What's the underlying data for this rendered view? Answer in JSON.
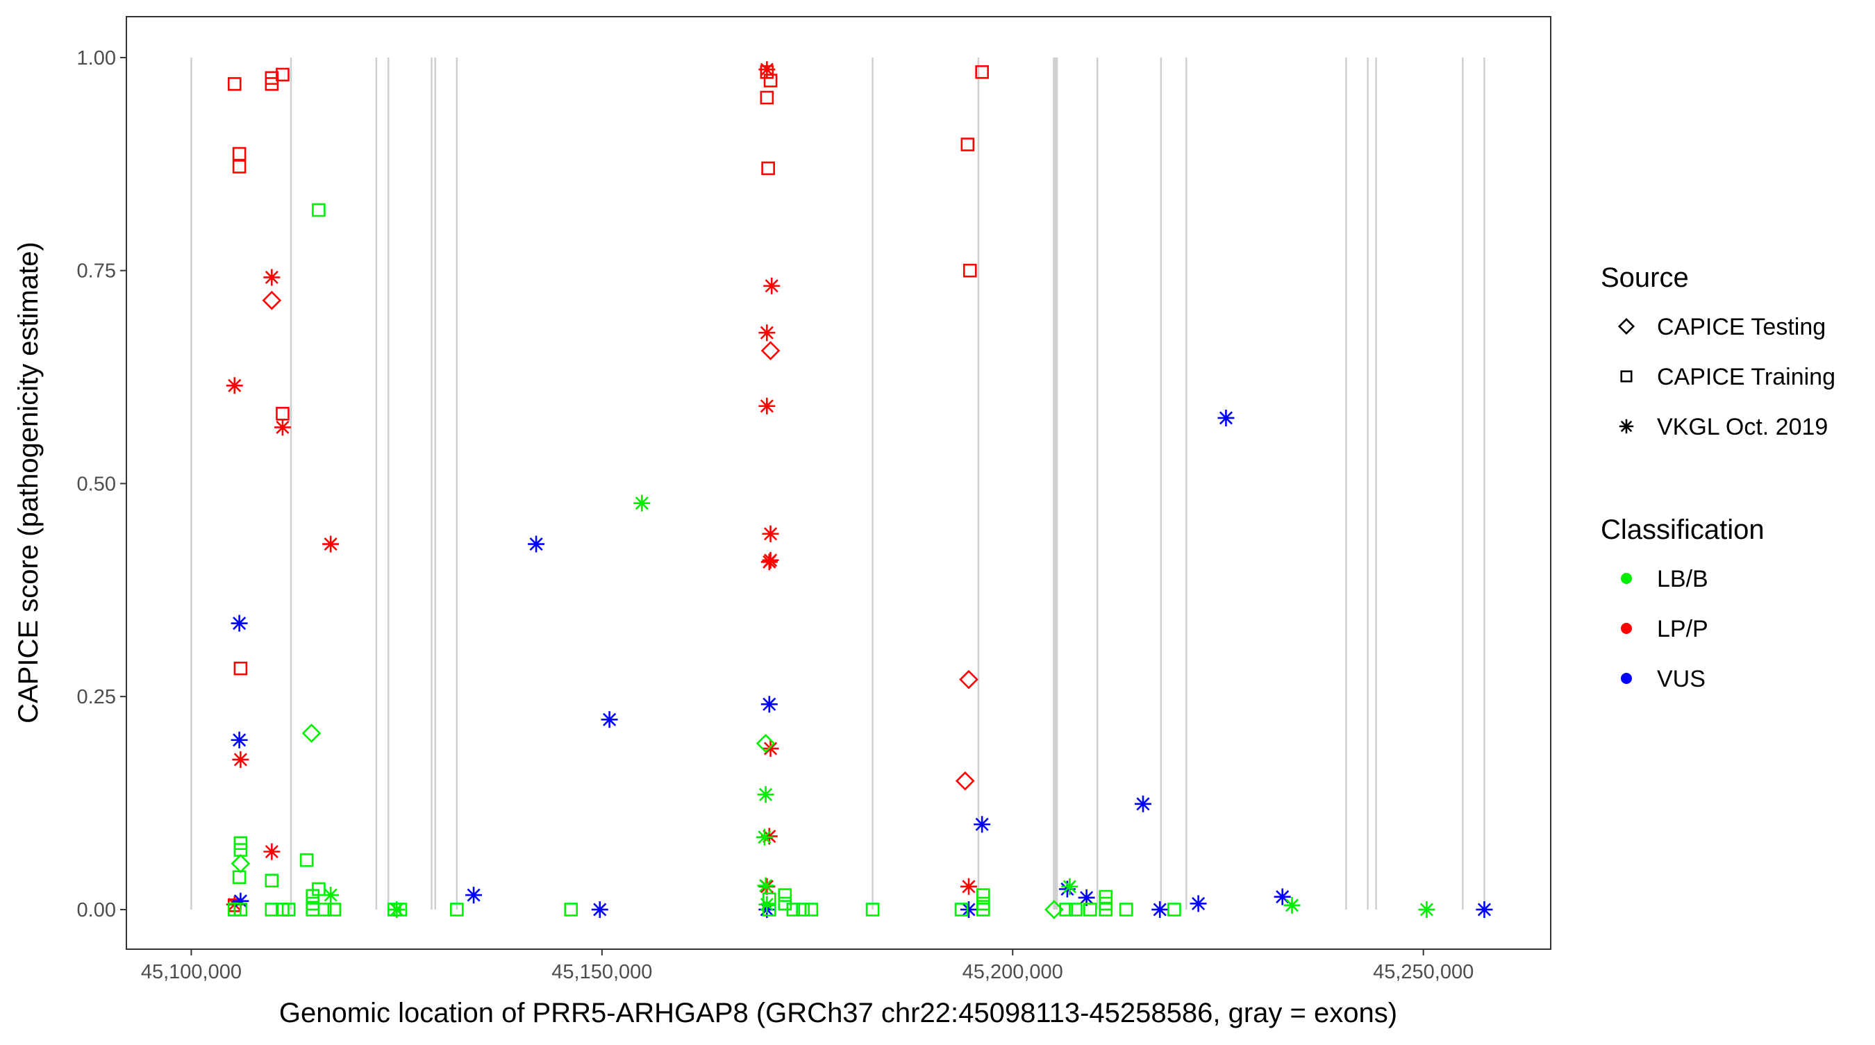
{
  "chart_data": {
    "type": "scatter",
    "xlabel": "Genomic location of PRR5-ARHGAP8 (GRCh37 chr22:45098113-45258586, gray = exons)",
    "ylabel": "CAPICE score (pathogenicity estimate)",
    "xlim": [
      45092100,
      45265500
    ],
    "ylim": [
      -0.0465,
      1.048
    ],
    "x_ticks": [
      45100000,
      45150000,
      45200000,
      45250000
    ],
    "x_tick_labels": [
      "45,100,000",
      "45,150,000",
      "45,200,000",
      "45,250,000"
    ],
    "y_ticks": [
      0,
      0.25,
      0.5,
      0.75,
      1.0
    ],
    "y_tick_labels": [
      "0.00",
      "0.25",
      "0.50",
      "0.75",
      "1.00"
    ],
    "grid": false,
    "exons": [
      45100000,
      45112143,
      45122530,
      45123990,
      45129260,
      45129700,
      45132330,
      45182950,
      45195830,
      45205000,
      45205190,
      45205400,
      45210310,
      45218060,
      45221140,
      45240590,
      45243230,
      45244250,
      45254790,
      45257420
    ],
    "legend": {
      "placement": "right",
      "source_title": "Source",
      "sources": [
        {
          "label": "CAPICE Testing",
          "shape": "diamond"
        },
        {
          "label": "CAPICE Training",
          "shape": "square"
        },
        {
          "label": "VKGL Oct. 2019",
          "shape": "asterisk"
        }
      ],
      "class_title": "Classification",
      "classes": [
        {
          "label": "LB/B",
          "color": "#00ee00"
        },
        {
          "label": "LP/P",
          "color": "#ff0000"
        },
        {
          "label": "VUS",
          "color": "#0000ff"
        }
      ]
    },
    "point_fields": [
      "position",
      "score",
      "source_index",
      "class_index"
    ],
    "points": [
      [
        45105270,
        0.969,
        1,
        1
      ],
      [
        45109800,
        0.969,
        1,
        1
      ],
      [
        45109800,
        0.976,
        1,
        1
      ],
      [
        45111120,
        0.98,
        1,
        1
      ],
      [
        45105850,
        0.887,
        1,
        1
      ],
      [
        45105850,
        0.872,
        1,
        1
      ],
      [
        45111120,
        0.582,
        1,
        1
      ],
      [
        45106000,
        0.283,
        1,
        1
      ],
      [
        45105270,
        0.005,
        1,
        1
      ],
      [
        45109800,
        0.715,
        0,
        1
      ],
      [
        45109800,
        0.742,
        2,
        1
      ],
      [
        45105270,
        0.615,
        2,
        1
      ],
      [
        45111120,
        0.566,
        2,
        1
      ],
      [
        45116970,
        0.429,
        2,
        1
      ],
      [
        45106000,
        0.176,
        2,
        1
      ],
      [
        45109800,
        0.068,
        2,
        1
      ],
      [
        45105270,
        0.006,
        2,
        1
      ],
      [
        45105850,
        0.336,
        2,
        2
      ],
      [
        45105850,
        0.199,
        2,
        2
      ],
      [
        45106000,
        0.01,
        2,
        2
      ],
      [
        45141990,
        0.429,
        2,
        2
      ],
      [
        45150910,
        0.223,
        2,
        2
      ],
      [
        45134380,
        0.017,
        2,
        2
      ],
      [
        45149740,
        0.0,
        2,
        2
      ],
      [
        45115510,
        0.821,
        1,
        0
      ],
      [
        45106000,
        0.078,
        1,
        0
      ],
      [
        45106000,
        0.07,
        1,
        0
      ],
      [
        45105850,
        0.038,
        1,
        0
      ],
      [
        45109800,
        0.034,
        1,
        0
      ],
      [
        45114050,
        0.058,
        1,
        0
      ],
      [
        45115510,
        0.024,
        1,
        0
      ],
      [
        45114780,
        0.016,
        1,
        0
      ],
      [
        45114780,
        0.007,
        1,
        0
      ],
      [
        45105270,
        0,
        1,
        0
      ],
      [
        45106000,
        0,
        1,
        0
      ],
      [
        45109800,
        0,
        1,
        0
      ],
      [
        45111120,
        0,
        1,
        0
      ],
      [
        45111850,
        0,
        1,
        0
      ],
      [
        45114780,
        0,
        1,
        0
      ],
      [
        45116240,
        0,
        1,
        0
      ],
      [
        45117410,
        0,
        1,
        0
      ],
      [
        45124720,
        0,
        1,
        0
      ],
      [
        45125450,
        0,
        1,
        0
      ],
      [
        45132330,
        0,
        1,
        0
      ],
      [
        45146230,
        0,
        1,
        0
      ],
      [
        45106000,
        0.054,
        0,
        0
      ],
      [
        45114630,
        0.207,
        0,
        0
      ],
      [
        45116970,
        0.017,
        2,
        0
      ],
      [
        45125010,
        0,
        2,
        0
      ],
      [
        45154860,
        0.477,
        2,
        0
      ],
      [
        45170080,
        0.983,
        1,
        1
      ],
      [
        45170520,
        0.973,
        1,
        1
      ],
      [
        45170080,
        0.953,
        1,
        1
      ],
      [
        45170230,
        0.87,
        1,
        1
      ],
      [
        45194510,
        0.898,
        1,
        1
      ],
      [
        45194800,
        0.75,
        1,
        1
      ],
      [
        45196270,
        0.983,
        1,
        1
      ],
      [
        45170080,
        0.986,
        2,
        1
      ],
      [
        45170660,
        0.732,
        2,
        1
      ],
      [
        45170080,
        0.677,
        2,
        1
      ],
      [
        45170080,
        0.591,
        2,
        1
      ],
      [
        45170520,
        0.441,
        2,
        1
      ],
      [
        45170520,
        0.41,
        2,
        1
      ],
      [
        45170370,
        0.408,
        2,
        1
      ],
      [
        45170520,
        0.189,
        2,
        1
      ],
      [
        45170370,
        0.086,
        2,
        1
      ],
      [
        45170080,
        0.027,
        2,
        1
      ],
      [
        45194650,
        0.027,
        2,
        1
      ],
      [
        45170520,
        0.656,
        0,
        1
      ],
      [
        45194650,
        0.27,
        0,
        1
      ],
      [
        45194210,
        0.151,
        0,
        1
      ],
      [
        45170370,
        0.241,
        2,
        2
      ],
      [
        45170080,
        0,
        2,
        2
      ],
      [
        45196270,
        0.1,
        2,
        2
      ],
      [
        45194650,
        0,
        2,
        2
      ],
      [
        45215870,
        0.124,
        2,
        2
      ],
      [
        45225970,
        0.577,
        2,
        2
      ],
      [
        45208990,
        0.014,
        2,
        2
      ],
      [
        45206650,
        0.024,
        2,
        2
      ],
      [
        45217920,
        0,
        2,
        2
      ],
      [
        45222600,
        0.007,
        2,
        2
      ],
      [
        45232840,
        0.015,
        2,
        2
      ],
      [
        45257420,
        0,
        2,
        2
      ],
      [
        45169930,
        0.195,
        0,
        0
      ],
      [
        45205040,
        0,
        0,
        0
      ],
      [
        45169930,
        0.135,
        2,
        0
      ],
      [
        45169790,
        0.085,
        2,
        0
      ],
      [
        45169930,
        0.028,
        2,
        0
      ],
      [
        45234010,
        0.005,
        2,
        0
      ],
      [
        45250400,
        0,
        2,
        0
      ],
      [
        45206940,
        0.027,
        2,
        0
      ],
      [
        45170080,
        0.006,
        2,
        0
      ],
      [
        45170370,
        0.012,
        1,
        0
      ],
      [
        45170370,
        0,
        1,
        0
      ],
      [
        45172270,
        0.017,
        1,
        0
      ],
      [
        45172270,
        0.007,
        1,
        0
      ],
      [
        45173290,
        0,
        1,
        0
      ],
      [
        45174460,
        0,
        1,
        0
      ],
      [
        45175490,
        0,
        1,
        0
      ],
      [
        45182950,
        0,
        1,
        0
      ],
      [
        45193770,
        0,
        1,
        0
      ],
      [
        45196410,
        0.017,
        1,
        0
      ],
      [
        45196410,
        0.007,
        1,
        0
      ],
      [
        45196410,
        0,
        1,
        0
      ],
      [
        45206500,
        0,
        1,
        0
      ],
      [
        45207670,
        0,
        1,
        0
      ],
      [
        45209430,
        0,
        1,
        0
      ],
      [
        45211330,
        0.015,
        1,
        0
      ],
      [
        45211330,
        0.007,
        1,
        0
      ],
      [
        45211330,
        0,
        1,
        0
      ],
      [
        45213820,
        0,
        1,
        0
      ],
      [
        45219670,
        0,
        1,
        0
      ]
    ]
  }
}
